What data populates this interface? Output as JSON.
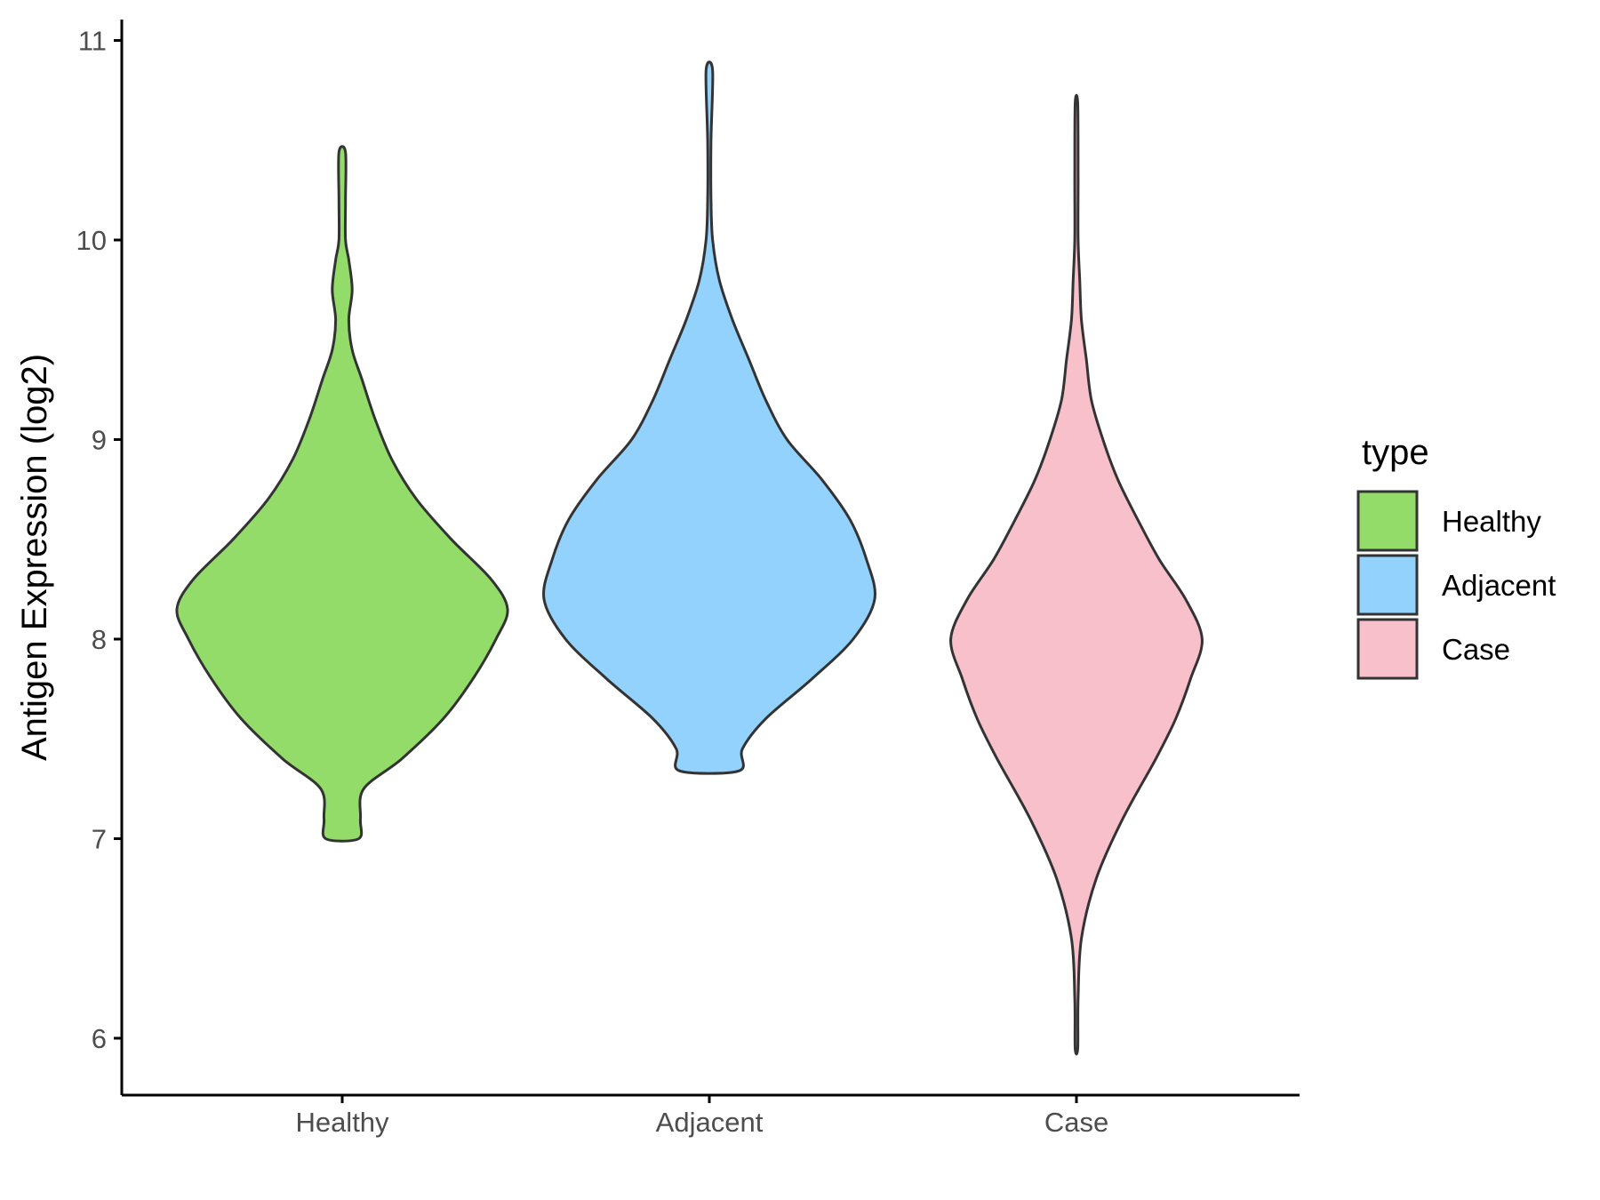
{
  "chart_data": {
    "type": "violin",
    "ylabel": "Antigen Expression (log2)",
    "xlabel": "",
    "ylim": [
      5.7,
      11.1
    ],
    "yticks": [
      6,
      7,
      8,
      9,
      10,
      11
    ],
    "categories": [
      "Healthy",
      "Adjacent",
      "Case"
    ],
    "legend": {
      "title": "type",
      "position": "right",
      "entries": [
        "Healthy",
        "Adjacent",
        "Case"
      ]
    },
    "grid": false,
    "series": [
      {
        "name": "Healthy",
        "color": "#93dc6a",
        "min": 7.0,
        "max": 10.44,
        "widest_at": 8.15,
        "profile": [
          [
            7.0,
            0.1
          ],
          [
            7.1,
            0.11
          ],
          [
            7.25,
            0.13
          ],
          [
            7.4,
            0.36
          ],
          [
            7.6,
            0.61
          ],
          [
            7.8,
            0.79
          ],
          [
            8.0,
            0.93
          ],
          [
            8.15,
            1.0
          ],
          [
            8.3,
            0.9
          ],
          [
            8.5,
            0.66
          ],
          [
            8.7,
            0.45
          ],
          [
            8.9,
            0.3
          ],
          [
            9.1,
            0.2
          ],
          [
            9.3,
            0.12
          ],
          [
            9.45,
            0.06
          ],
          [
            9.6,
            0.04
          ],
          [
            9.75,
            0.06
          ],
          [
            9.9,
            0.04
          ],
          [
            10.0,
            0.02
          ],
          [
            10.2,
            0.02
          ],
          [
            10.44,
            0.02
          ]
        ]
      },
      {
        "name": "Adjacent",
        "color": "#92d2fc",
        "min": 7.34,
        "max": 10.85,
        "widest_at": 8.2,
        "profile": [
          [
            7.34,
            0.18
          ],
          [
            7.45,
            0.2
          ],
          [
            7.6,
            0.34
          ],
          [
            7.8,
            0.62
          ],
          [
            8.0,
            0.87
          ],
          [
            8.2,
            1.0
          ],
          [
            8.4,
            0.95
          ],
          [
            8.6,
            0.85
          ],
          [
            8.8,
            0.68
          ],
          [
            9.0,
            0.47
          ],
          [
            9.2,
            0.34
          ],
          [
            9.4,
            0.24
          ],
          [
            9.6,
            0.14
          ],
          [
            9.8,
            0.06
          ],
          [
            10.0,
            0.02
          ],
          [
            10.2,
            0.01
          ],
          [
            10.5,
            0.01
          ],
          [
            10.85,
            0.02
          ]
        ]
      },
      {
        "name": "Case",
        "color": "#f7c0cb",
        "min": 5.95,
        "max": 10.68,
        "widest_at": 8.05,
        "profile": [
          [
            5.95,
            0.0
          ],
          [
            6.2,
            0.01
          ],
          [
            6.5,
            0.03
          ],
          [
            6.8,
            0.12
          ],
          [
            7.1,
            0.28
          ],
          [
            7.4,
            0.48
          ],
          [
            7.6,
            0.6
          ],
          [
            7.8,
            0.69
          ],
          [
            8.0,
            0.76
          ],
          [
            8.2,
            0.66
          ],
          [
            8.4,
            0.5
          ],
          [
            8.6,
            0.37
          ],
          [
            8.8,
            0.25
          ],
          [
            9.0,
            0.16
          ],
          [
            9.2,
            0.09
          ],
          [
            9.4,
            0.06
          ],
          [
            9.6,
            0.03
          ],
          [
            9.8,
            0.02
          ],
          [
            10.0,
            0.01
          ],
          [
            10.3,
            0.01
          ],
          [
            10.68,
            0.0
          ]
        ]
      }
    ]
  }
}
